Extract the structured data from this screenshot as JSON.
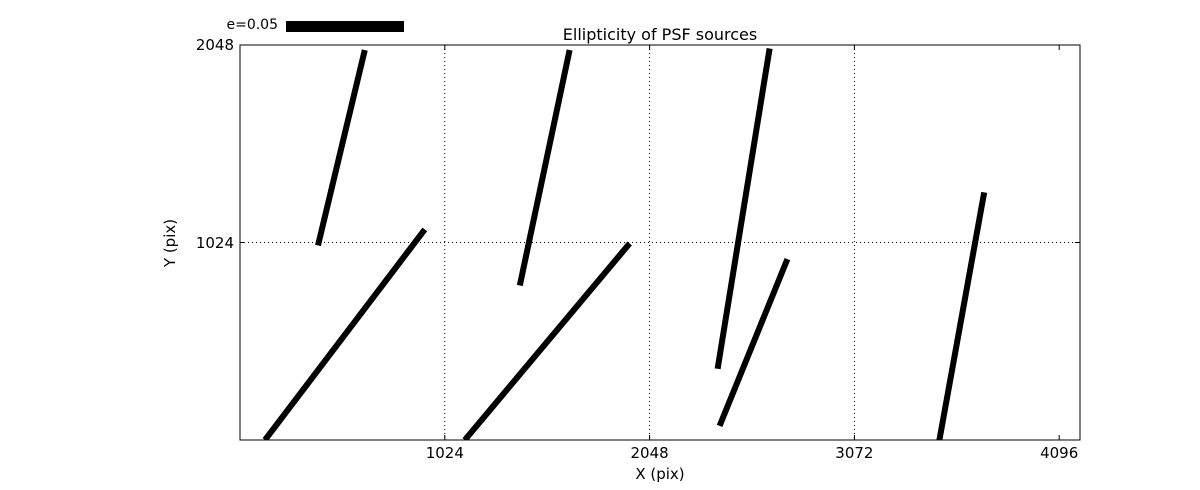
{
  "title": "Ellipticity of PSF sources",
  "legend": {
    "label": "e=0.05"
  },
  "chart_data": {
    "type": "line",
    "title": "Ellipticity of PSF sources",
    "xlabel": "X (pix)",
    "ylabel": "Y (pix)",
    "xlim": [
      0,
      4200
    ],
    "ylim": [
      0,
      2048
    ],
    "x_ticks": [
      1024,
      2048,
      3072,
      4096
    ],
    "y_ticks": [
      1024,
      2048
    ],
    "grid": true,
    "grid_x": [
      1024,
      2048,
      3072
    ],
    "grid_y": [
      1024
    ],
    "legend": {
      "label": "e=0.05",
      "position": "top-left"
    },
    "stroke_color": "#000000",
    "stroke_width": 6,
    "segments": [
      {
        "x1": 390,
        "y1": 1009,
        "x2": 624,
        "y2": 2022
      },
      {
        "x1": 125,
        "y1": 0,
        "x2": 924,
        "y2": 1092
      },
      {
        "x1": 1399,
        "y1": 801,
        "x2": 1648,
        "y2": 2022
      },
      {
        "x1": 1124,
        "y1": 0,
        "x2": 1948,
        "y2": 1019
      },
      {
        "x1": 2388,
        "y1": 369,
        "x2": 2648,
        "y2": 2030
      },
      {
        "x1": 2398,
        "y1": 73,
        "x2": 2737,
        "y2": 938
      },
      {
        "x1": 3497,
        "y1": 0,
        "x2": 3721,
        "y2": 1284
      }
    ]
  }
}
